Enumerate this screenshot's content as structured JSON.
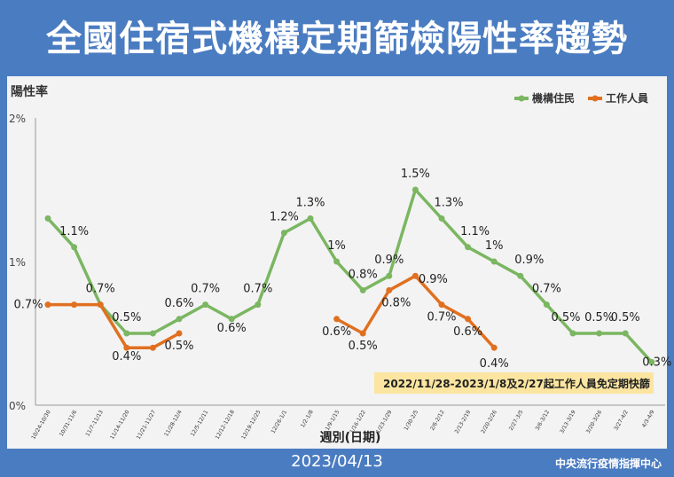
{
  "chart_data": {
    "type": "line",
    "title": "全國住宿式機構定期篩檢陽性率趨勢",
    "ylabel": "陽性率",
    "xlabel": "週別(日期)",
    "ylim": [
      0,
      2
    ],
    "y_ticks": [
      "0%",
      "1%",
      "2%"
    ],
    "categories": [
      "10/24-10/30",
      "10/31-11/6",
      "11/7-11/13",
      "11/14-11/20",
      "11/21-11/27",
      "11/28-12/4",
      "12/5-12/11",
      "12/12-12/18",
      "12/19-12/25",
      "12/26-1/1",
      "1/2-1/8",
      "1/9-1/15",
      "1/16-1/22",
      "1/23-1/29",
      "1/30-2/5",
      "2/6-2/12",
      "2/13-2/19",
      "2/20-2/26",
      "2/27-3/5",
      "3/6-3/12",
      "3/13-3/19",
      "3/20-3/26",
      "3/27-4/2",
      "4/3-4/9"
    ],
    "series": [
      {
        "name": "機構住民",
        "color": "#7bb661",
        "values": [
          1.3,
          1.1,
          0.7,
          0.5,
          0.5,
          0.6,
          0.7,
          0.6,
          0.7,
          1.2,
          1.3,
          1.0,
          0.8,
          0.9,
          1.5,
          1.3,
          1.1,
          1.0,
          0.9,
          0.7,
          0.5,
          0.5,
          0.5,
          0.3
        ],
        "labels": [
          "",
          "1.1%",
          "0.7%",
          "0.5%",
          "",
          "0.6%",
          "0.7%",
          "0.6%",
          "0.7%",
          "1.2%",
          "1.3%",
          "1%",
          "0.8%",
          "0.9%",
          "1.5%",
          "1.3%",
          "1.1%",
          "1%",
          "0.9%",
          "0.7%",
          "0.5%",
          "0.5%",
          "0.5%",
          "0.3%"
        ]
      },
      {
        "name": "工作人員",
        "color": "#e07020",
        "values": [
          0.7,
          0.7,
          0.7,
          0.4,
          0.4,
          0.5,
          null,
          null,
          null,
          null,
          null,
          0.6,
          0.5,
          0.8,
          0.9,
          0.7,
          0.6,
          0.4,
          null,
          null,
          null,
          null,
          null,
          null
        ],
        "labels": [
          "0.7%",
          "",
          "",
          "0.4%",
          "",
          "0.5%",
          "",
          "",
          "",
          "",
          "",
          "0.6%",
          "0.5%",
          "0.8%",
          "0.9%",
          "0.7%",
          "0.6%",
          "0.4%",
          "",
          "",
          "",
          "",
          "",
          ""
        ]
      }
    ],
    "annotation": "2022/11/28-2023/1/8及2/27起工作人員免定期快篩",
    "grid": false,
    "legend": "top-right"
  },
  "footer": {
    "date": "2023/04/13",
    "org": "中央流行疫情指揮中心"
  }
}
